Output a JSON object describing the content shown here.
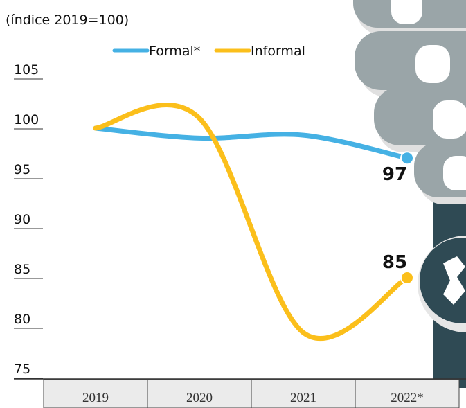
{
  "chart_data": {
    "type": "line",
    "title": "(índice 2019=100)",
    "categories": [
      "2019",
      "2020",
      "2021",
      "2022*"
    ],
    "series": [
      {
        "name": "Formal*",
        "color": "#45b1e4",
        "values": [
          100,
          99,
          99.3,
          97
        ]
      },
      {
        "name": "Informal",
        "color": "#fbbf1b",
        "values": [
          100,
          101,
          79.5,
          85
        ]
      }
    ],
    "ylim": [
      75,
      105
    ],
    "yticks": [
      75,
      80,
      85,
      90,
      95,
      100,
      105
    ]
  }
}
